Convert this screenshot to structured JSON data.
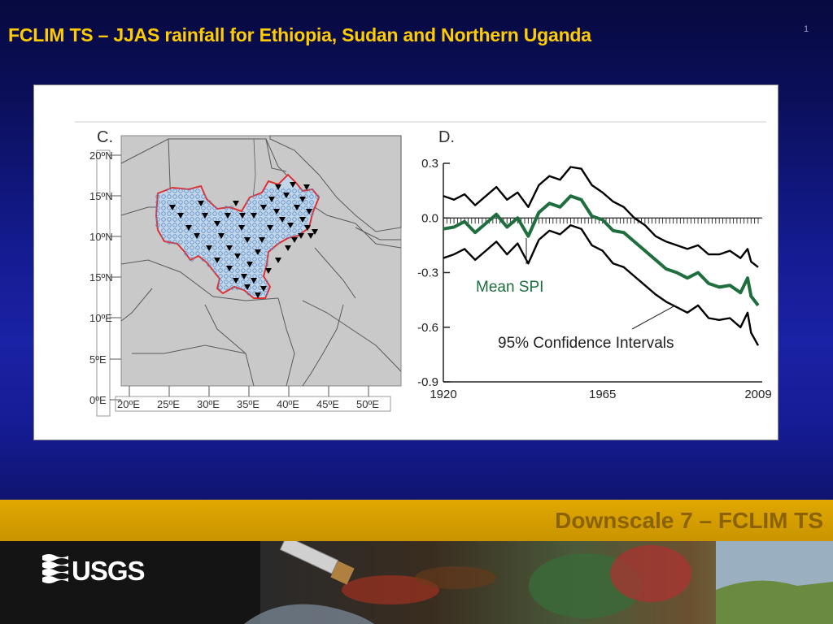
{
  "slide": {
    "title": "FCLIM TS – JJAS rainfall for Ethiopia, Sudan and Northern Uganda",
    "number": "1",
    "footer_label": "Downscale 7 – FCLIM TS",
    "logo_text": "USGS"
  },
  "map_panel": {
    "label": "C.",
    "lat_labels": [
      "20ºN",
      "15ºN",
      "10ºN",
      "15ºN",
      "10ºE",
      "5ºE",
      "0ºE"
    ],
    "lon_labels": [
      "20ºE",
      "25ºE",
      "30ºE",
      "35ºE",
      "40ºE",
      "45ºE",
      "50ºE"
    ]
  },
  "chart_data": {
    "type": "line",
    "label": "D.",
    "xlabel": "",
    "ylabel": "",
    "xlim": [
      1920,
      2009
    ],
    "ylim": [
      -0.9,
      0.3
    ],
    "x_ticks": [
      "1920",
      "1965",
      "2009"
    ],
    "y_ticks": [
      "0.3",
      "0.0",
      "-0.3",
      "-0.6",
      "-0.9"
    ],
    "annotations": [
      "Mean SPI",
      "95% Confidence Intervals"
    ],
    "x": [
      1920,
      1923,
      1926,
      1929,
      1932,
      1935,
      1938,
      1941,
      1944,
      1947,
      1950,
      1953,
      1956,
      1959,
      1962,
      1965,
      1968,
      1971,
      1974,
      1977,
      1980,
      1983,
      1986,
      1989,
      1992,
      1995,
      1998,
      2001,
      2004,
      2006,
      2007,
      2009
    ],
    "series": [
      {
        "name": "Mean SPI",
        "color": "#1e6e3e",
        "values": [
          -0.06,
          -0.05,
          -0.02,
          -0.08,
          -0.03,
          0.02,
          -0.05,
          0.0,
          -0.1,
          0.03,
          0.08,
          0.06,
          0.12,
          0.1,
          0.01,
          -0.01,
          -0.07,
          -0.08,
          -0.13,
          -0.18,
          -0.23,
          -0.28,
          -0.3,
          -0.33,
          -0.3,
          -0.36,
          -0.38,
          -0.37,
          -0.41,
          -0.33,
          -0.43,
          -0.48
        ]
      },
      {
        "color": "#000000",
        "values": [
          0.12,
          0.1,
          0.13,
          0.07,
          0.12,
          0.17,
          0.1,
          0.14,
          0.06,
          0.18,
          0.23,
          0.21,
          0.28,
          0.27,
          0.18,
          0.14,
          0.09,
          0.06,
          0.0,
          -0.04,
          -0.1,
          -0.13,
          -0.15,
          -0.17,
          -0.15,
          -0.2,
          -0.2,
          -0.18,
          -0.22,
          -0.17,
          -0.24,
          -0.27
        ]
      },
      {
        "color": "#000000",
        "values": [
          -0.22,
          -0.2,
          -0.17,
          -0.23,
          -0.18,
          -0.13,
          -0.2,
          -0.14,
          -0.25,
          -0.12,
          -0.07,
          -0.09,
          -0.04,
          -0.06,
          -0.15,
          -0.18,
          -0.25,
          -0.27,
          -0.32,
          -0.37,
          -0.42,
          -0.46,
          -0.49,
          -0.52,
          -0.48,
          -0.55,
          -0.56,
          -0.55,
          -0.6,
          -0.52,
          -0.63,
          -0.7
        ]
      }
    ]
  },
  "colors": {
    "title": "#ffcc00",
    "gold_bar": "#d9a300",
    "footer_text": "#8a6200",
    "mean_spi": "#1e6e3e",
    "region_outline": "#e03030",
    "map_land": "#c9c9c9"
  }
}
